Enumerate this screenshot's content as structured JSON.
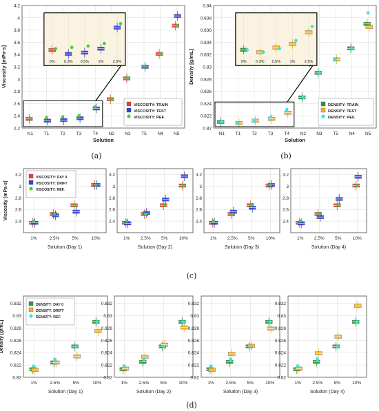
{
  "figure": {
    "captions": [
      "(a)",
      "(b)",
      "(c)",
      "(d)"
    ]
  },
  "colors": {
    "red": "#e8412e",
    "blue": "#2f3fe0",
    "green": "#3fcf3f",
    "orange": "#f2b229",
    "cyan": "#31e6ec",
    "darkgreen": "#2d9a2d",
    "inset_bg": "#faf3e1",
    "grid": "#d9d9d9"
  },
  "chart_data": [
    {
      "id": "a",
      "type": "scatter",
      "title": "",
      "xlabel": "Solution",
      "ylabel": "Viscosity [mPa·s]",
      "categories": [
        "N1",
        "T1",
        "T2",
        "T3",
        "T4",
        "N2",
        "N3",
        "T5",
        "N4",
        "N5"
      ],
      "ylim": [
        2.2,
        4.2
      ],
      "yticks": [
        2.2,
        2.4,
        2.6,
        2.8,
        3,
        3.2,
        3.4,
        3.6,
        3.8,
        4,
        4.2
      ],
      "grid": true,
      "legend_position": "bottom-right",
      "series": [
        {
          "name": "VISCOSITY: TRAIN",
          "color": "#e8412e",
          "marker": "box",
          "values": [
            2.35,
            null,
            null,
            null,
            null,
            2.67,
            3.01,
            null,
            3.41,
            3.87
          ]
        },
        {
          "name": "VISCOSITY: TEST",
          "color": "#2f3fe0",
          "marker": "box",
          "values": [
            null,
            2.32,
            2.33,
            2.36,
            2.52,
            null,
            null,
            3.2,
            null,
            4.03
          ]
        },
        {
          "name": "VISCOSITY: REF.",
          "color": "#3fcf3f",
          "marker": "dot",
          "values": [
            2.36,
            2.37,
            2.38,
            2.4,
            2.55,
            2.67,
            3.01,
            3.21,
            3.41,
            3.87
          ]
        }
      ],
      "inset": {
        "labels": [
          "0%",
          "0.3%",
          "0.5%",
          "1%",
          "2.5%"
        ],
        "ylim": [
          2.28,
          2.6
        ]
      }
    },
    {
      "id": "b",
      "type": "scatter",
      "title": "",
      "xlabel": "Solution",
      "ylabel": "Density [g/mL]",
      "categories": [
        "N1",
        "T1",
        "T2",
        "T3",
        "T4",
        "N2",
        "N3",
        "T5",
        "N4",
        "N5"
      ],
      "ylim": [
        0.82,
        0.84
      ],
      "yticks": [
        0.82,
        0.822,
        0.824,
        0.826,
        0.828,
        0.83,
        0.832,
        0.834,
        0.836,
        0.838,
        0.84
      ],
      "grid": true,
      "legend_position": "bottom-right",
      "series": [
        {
          "name": "DENSITY: TRAIN",
          "color": "#2d9a2d",
          "marker": "box",
          "values": [
            0.821,
            null,
            null,
            null,
            null,
            0.825,
            0.829,
            null,
            0.833,
            0.837
          ]
        },
        {
          "name": "DENSITY: TEST",
          "color": "#f2b229",
          "marker": "box",
          "values": [
            null,
            0.8208,
            0.8212,
            0.8215,
            0.8225,
            null,
            null,
            0.8312,
            null,
            0.8365
          ]
        },
        {
          "name": "DENSITY: REF.",
          "color": "#31e6ec",
          "marker": "dot",
          "values": [
            0.821,
            0.8208,
            0.8211,
            0.8218,
            0.823,
            0.825,
            0.829,
            0.8312,
            0.833,
            0.8388
          ]
        }
      ],
      "inset": {
        "labels": [
          "0%",
          "0.3%",
          "0.5%",
          "1%",
          "2.5%"
        ],
        "ylim": [
          0.8202,
          0.8238
        ]
      }
    },
    {
      "id": "c1",
      "type": "scatter",
      "xlabel": "Solution (Day 1)",
      "ylabel": "Viscosity [mPa·s]",
      "categories": [
        "1%",
        "2.5%",
        "5%",
        "10%"
      ],
      "ylim": [
        2.2,
        3.3
      ],
      "yticks": [
        2.4,
        2.6,
        2.8,
        3,
        3.2
      ],
      "grid": true,
      "legend_position": "top-left",
      "series": [
        {
          "name": "VISCOSITY: DAY 0",
          "color": "#e8412e",
          "marker": "box",
          "values": [
            2.37,
            2.52,
            2.67,
            3.02
          ]
        },
        {
          "name": "VISCOSITY: DRIFT",
          "color": "#2f3fe0",
          "marker": "box",
          "values": [
            2.37,
            2.5,
            2.56,
            3.02
          ]
        },
        {
          "name": "VISCOSITY: REF.",
          "color": "#3fcf3f",
          "marker": "dot",
          "values": [
            2.4,
            2.52,
            2.67,
            3.02
          ]
        }
      ]
    },
    {
      "id": "c2",
      "type": "scatter",
      "xlabel": "Solution (Day 2)",
      "ylabel": "",
      "categories": [
        "1%",
        "2.5%",
        "5%",
        "10%"
      ],
      "ylim": [
        2.2,
        3.3
      ],
      "yticks": [
        2.4,
        2.6,
        2.8,
        3,
        3.2
      ],
      "grid": true,
      "series": [
        {
          "name": "VISCOSITY: DAY 0",
          "color": "#e8412e",
          "marker": "box",
          "values": [
            2.37,
            2.52,
            2.67,
            3.01
          ]
        },
        {
          "name": "VISCOSITY: DRIFT",
          "color": "#2f3fe0",
          "marker": "box",
          "values": [
            2.36,
            2.54,
            2.77,
            3.17
          ]
        },
        {
          "name": "VISCOSITY: REF.",
          "color": "#3fcf3f",
          "marker": "dot",
          "values": [
            2.4,
            2.52,
            2.67,
            3.01
          ]
        }
      ]
    },
    {
      "id": "c3",
      "type": "scatter",
      "xlabel": "Solution (Day 3)",
      "ylabel": "",
      "categories": [
        "1%",
        "2.5%",
        "5%",
        "10%"
      ],
      "ylim": [
        2.2,
        3.3
      ],
      "yticks": [
        2.4,
        2.6,
        2.8,
        3,
        3.2
      ],
      "grid": true,
      "series": [
        {
          "name": "VISCOSITY: DAY 0",
          "color": "#e8412e",
          "marker": "box",
          "values": [
            2.37,
            2.52,
            2.67,
            3.01
          ]
        },
        {
          "name": "VISCOSITY: DRIFT",
          "color": "#2f3fe0",
          "marker": "box",
          "values": [
            2.37,
            2.56,
            2.63,
            3.02
          ]
        },
        {
          "name": "VISCOSITY: REF.",
          "color": "#3fcf3f",
          "marker": "dot",
          "values": [
            2.4,
            2.52,
            2.67,
            3.02
          ]
        }
      ]
    },
    {
      "id": "c4",
      "type": "scatter",
      "xlabel": "Solution (Day 4)",
      "ylabel": "",
      "categories": [
        "1%",
        "2.5%",
        "5%",
        "10%"
      ],
      "ylim": [
        2.2,
        3.3
      ],
      "yticks": [
        2.4,
        2.6,
        2.8,
        3,
        3.2
      ],
      "grid": true,
      "series": [
        {
          "name": "VISCOSITY: DAY 0",
          "color": "#e8412e",
          "marker": "box",
          "values": [
            2.37,
            2.52,
            2.67,
            3.01
          ]
        },
        {
          "name": "VISCOSITY: DRIFT",
          "color": "#2f3fe0",
          "marker": "box",
          "values": [
            2.36,
            2.47,
            2.78,
            3.16
          ]
        },
        {
          "name": "VISCOSITY: REF.",
          "color": "#3fcf3f",
          "marker": "dot",
          "values": [
            2.4,
            2.52,
            2.67,
            3.01
          ]
        }
      ]
    },
    {
      "id": "d1",
      "type": "scatter",
      "xlabel": "Solution (Day 1)",
      "ylabel": "Density [g/mL]",
      "categories": [
        "1%",
        "2.5%",
        "5%",
        "10%"
      ],
      "ylim": [
        0.82,
        0.8332
      ],
      "yticks": [
        0.82,
        0.822,
        0.824,
        0.826,
        0.828,
        0.83,
        0.832
      ],
      "grid": true,
      "legend_position": "top-left",
      "series": [
        {
          "name": "DENSITY: DAY 0",
          "color": "#2d9a2d",
          "marker": "box",
          "values": [
            0.8213,
            0.8224,
            0.825,
            0.829
          ]
        },
        {
          "name": "DENSITY: DRIFT",
          "color": "#f2b229",
          "marker": "box",
          "values": [
            0.8212,
            0.8224,
            0.8234,
            0.8275
          ]
        },
        {
          "name": "DENSITY: REF.",
          "color": "#31e6ec",
          "marker": "dot",
          "values": [
            0.8218,
            0.8229,
            0.825,
            0.829
          ]
        }
      ]
    },
    {
      "id": "d2",
      "type": "scatter",
      "xlabel": "Solution (Day 2)",
      "ylabel": "",
      "categories": [
        "1%",
        "2.5%",
        "5%",
        "10%"
      ],
      "ylim": [
        0.82,
        0.8332
      ],
      "yticks": [
        0.82,
        0.822,
        0.824,
        0.826,
        0.828,
        0.83,
        0.832
      ],
      "grid": true,
      "series": [
        {
          "name": "DENSITY: DAY 0",
          "color": "#2d9a2d",
          "marker": "box",
          "values": [
            0.8213,
            0.8225,
            0.825,
            0.829
          ]
        },
        {
          "name": "DENSITY: DRIFT",
          "color": "#f2b229",
          "marker": "box",
          "values": [
            0.8214,
            0.8233,
            0.8253,
            0.8281
          ]
        },
        {
          "name": "DENSITY: REF.",
          "color": "#31e6ec",
          "marker": "dot",
          "values": [
            0.8218,
            0.8229,
            0.825,
            0.829
          ]
        }
      ]
    },
    {
      "id": "d3",
      "type": "scatter",
      "xlabel": "Solution (Day 3)",
      "ylabel": "",
      "categories": [
        "1%",
        "2.5%",
        "5%",
        "10%"
      ],
      "ylim": [
        0.82,
        0.8332
      ],
      "yticks": [
        0.82,
        0.822,
        0.824,
        0.826,
        0.828,
        0.83,
        0.832
      ],
      "grid": true,
      "series": [
        {
          "name": "DENSITY: DAY 0",
          "color": "#2d9a2d",
          "marker": "box",
          "values": [
            0.8213,
            0.8225,
            0.825,
            0.829
          ]
        },
        {
          "name": "DENSITY: DRIFT",
          "color": "#f2b229",
          "marker": "box",
          "values": [
            0.8212,
            0.8238,
            0.8251,
            0.8279
          ]
        },
        {
          "name": "DENSITY: REF.",
          "color": "#31e6ec",
          "marker": "dot",
          "values": [
            0.8218,
            0.8229,
            0.825,
            0.829
          ]
        }
      ]
    },
    {
      "id": "d4",
      "type": "scatter",
      "xlabel": "Solution (Day 4)",
      "ylabel": "",
      "categories": [
        "1%",
        "2.5%",
        "5%",
        "10%"
      ],
      "ylim": [
        0.82,
        0.8332
      ],
      "yticks": [
        0.82,
        0.822,
        0.824,
        0.826,
        0.828,
        0.83,
        0.832
      ],
      "grid": true,
      "series": [
        {
          "name": "DENSITY: DAY 0",
          "color": "#2d9a2d",
          "marker": "box",
          "values": [
            0.8213,
            0.8225,
            0.825,
            0.829
          ]
        },
        {
          "name": "DENSITY: DRIFT",
          "color": "#f2b229",
          "marker": "box",
          "values": [
            0.8214,
            0.8239,
            0.8266,
            0.8316
          ]
        },
        {
          "name": "DENSITY: REF.",
          "color": "#31e6ec",
          "marker": "dot",
          "values": [
            0.8218,
            0.8229,
            0.825,
            0.829
          ]
        }
      ]
    }
  ]
}
